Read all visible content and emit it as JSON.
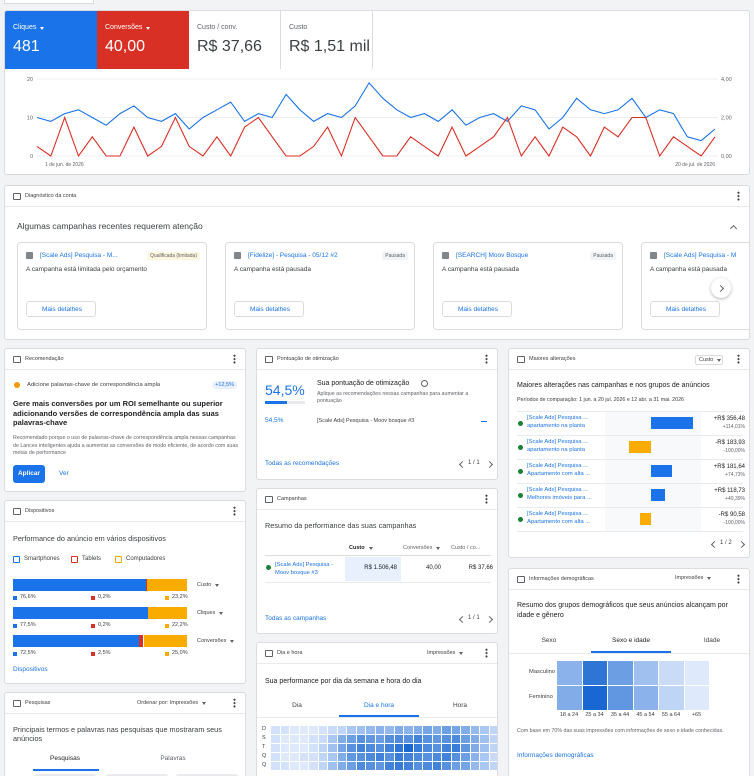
{
  "summary": {
    "metrics": [
      {
        "label": "Cliques",
        "value": "481"
      },
      {
        "label": "Conversões",
        "value": "40,00"
      },
      {
        "label": "Custo / conv.",
        "value": "R$ 37,66"
      },
      {
        "label": "Custo",
        "value": "R$ 1,51 mil"
      }
    ]
  },
  "chart_data": {
    "type": "line",
    "categories": [
      "1 de jun. de 2026",
      null,
      null,
      null,
      null,
      null,
      null,
      null,
      null,
      null,
      null,
      null,
      null,
      null,
      null,
      null,
      null,
      null,
      null,
      null,
      null,
      null,
      null,
      null,
      null,
      null,
      null,
      null,
      null,
      null,
      null,
      null,
      null,
      null,
      null,
      null,
      null,
      null,
      null,
      null,
      null,
      null,
      null,
      null,
      null,
      null,
      null,
      null,
      null,
      "20 de jul. de 2026"
    ],
    "series": [
      {
        "color": "#1a73e8",
        "values": [
          10,
          9,
          11,
          12,
          10,
          8,
          11,
          13,
          10,
          9,
          11,
          7,
          10,
          12,
          14,
          9,
          11,
          10,
          16,
          12,
          9,
          11,
          10,
          13,
          19,
          15,
          12,
          10,
          11,
          9,
          12,
          8,
          10,
          11,
          9,
          13,
          12,
          7,
          10,
          15,
          12,
          11,
          12,
          15,
          10,
          12,
          11,
          5,
          4,
          7
        ]
      },
      {
        "color": "#d93025",
        "axis": "y2",
        "values": [
          0.5,
          0,
          2,
          0,
          1,
          0,
          0,
          1.5,
          0,
          0.5,
          2,
          0.5,
          0,
          1,
          0,
          1.5,
          2,
          1,
          0,
          0,
          0.5,
          1.5,
          0,
          2,
          1,
          0,
          0,
          1,
          0.5,
          0,
          1.5,
          0,
          0.5,
          1,
          2,
          0,
          1,
          0,
          1.5,
          1,
          0,
          1.5,
          1,
          2,
          2,
          0,
          1,
          0.5,
          0,
          1
        ]
      }
    ],
    "ylim": [
      0,
      20
    ],
    "yticks": [
      0,
      10,
      20
    ],
    "y2lim": [
      0,
      4
    ],
    "y2ticks": [
      {
        "value": 0,
        "label": "0,00"
      },
      {
        "value": 2,
        "label": "2,00"
      },
      {
        "value": 4,
        "label": "4,00"
      }
    ],
    "grid": true
  },
  "diagnostics": {
    "title": "Diagnóstico da conta",
    "heading": "Algumas campanhas recentes requerem atenção",
    "cards": [
      {
        "title": "[Scale Ads] Pesquisa - M...",
        "status": "Qualificada (limitada)",
        "badge_color": "#fef7e0",
        "message": "A campanha está limitada pelo orçamento",
        "button": "Mais detalhes"
      },
      {
        "title": "[Fidelize] - Pesquisa - 05/12 #2",
        "status": "Pausada",
        "badge_color": "#f1f3f4",
        "message": "A campanha está pausada",
        "button": "Mais detalhes"
      },
      {
        "title": "[SEARCH] Moov Bosque",
        "status": "Pausada",
        "badge_color": "#f1f3f4",
        "message": "A campanha está pausada",
        "button": "Mais detalhes"
      },
      {
        "title": "[Scale Ads] Pesquisa - M",
        "message": "A campanha está pausada",
        "button": "Mais detalhes"
      }
    ]
  },
  "recommendation": {
    "title": "Recomendação",
    "item": "Adicione palavras-chave de correspondência ampla",
    "uplift": "+12,5%",
    "headline": "Gere mais conversões por um ROI semelhante ou superior adicionando versões de correspondência ampla das suas palavras-chave",
    "description": "Recomendado porque o uso de palavras-chave de correspondência ampla nessas campanhas de Lances inteligentes ajuda a aumentar as conversões de modo eficiente, de acordo com suas metas de performance",
    "apply": "Aplicar",
    "view": "Ver"
  },
  "devices": {
    "title": "Dispositivos",
    "heading": "Performance do anúncio em vários dispositivos",
    "legend": [
      {
        "name": "Smartphones",
        "color": "#1a73e8"
      },
      {
        "name": "Tablets",
        "color": "#d93025"
      },
      {
        "name": "Computadores",
        "color": "#f9ab00"
      }
    ],
    "rows": [
      {
        "metric": "Custo",
        "values": [
          76.6,
          0.2,
          23.2
        ],
        "value_labels": [
          "76,6%",
          "0,2%",
          "23,2%"
        ]
      },
      {
        "metric": "Cliques",
        "values": [
          77.5,
          0.2,
          22.2
        ],
        "value_labels": [
          "77,5%",
          "0,2%",
          "22,2%"
        ]
      },
      {
        "metric": "Conversões",
        "values": [
          72.5,
          2.5,
          25.0
        ],
        "value_labels": [
          "72,5%",
          "2,5%",
          "25,0%"
        ]
      }
    ],
    "link": "Dispositivos"
  },
  "search_terms": {
    "title": "Pesquisas",
    "sort": "Ordenar por: Impressões",
    "heading": "Principais termos e palavras nas pesquisas que mostraram seus anúncios",
    "tabs": [
      "Pesquisas",
      "Palavras"
    ]
  },
  "optimization": {
    "title": "Pontuação de otimização",
    "score": 54.5,
    "score_label": "54,5%",
    "heading": "Sua pontuação de otimização",
    "description": "Aplique as recomendações nessas campanhas para aumentar a pontuação",
    "rows": [
      {
        "score_label": "54,5%",
        "campaign": "[Scale Ads] Pesquisa - Moov bosque #3"
      }
    ],
    "link": "Todas as recomendações",
    "pagination": "1 / 1"
  },
  "campaigns": {
    "title": "Campanhas",
    "heading": "Resumo da performance das suas campanhas",
    "columns": [
      "Custo",
      "Conversões",
      "Custo / co..."
    ],
    "rows": [
      {
        "name": "[Scale Ads] Pesquisa - Moov bosque #3",
        "cells": [
          "R$ 1.506,48",
          "40,00",
          "R$ 37,66"
        ]
      }
    ],
    "link": "Todas as campanhas",
    "pagination": "1 / 1"
  },
  "day_hour": {
    "title": "Dia e hora",
    "metric": "Impressões",
    "heading": "Sua performance por dia da semana e hora do dia",
    "tabs": [
      "Dia",
      "Dia e hora",
      "Hora"
    ],
    "active_tab": 1,
    "days": [
      "D",
      "S",
      "T",
      "Q",
      "Q"
    ],
    "values": [
      [
        0.1,
        0.1,
        0.05,
        0.05,
        0.05,
        0.1,
        0.15,
        0.2,
        0.3,
        0.35,
        0.4,
        0.45,
        0.4,
        0.5,
        0.45,
        0.5,
        0.55,
        0.5,
        0.6,
        0.55,
        0.5,
        0.4,
        0.3,
        0.2
      ],
      [
        0.1,
        0.05,
        0.05,
        0.05,
        0.1,
        0.15,
        0.3,
        0.5,
        0.6,
        0.7,
        0.65,
        0.6,
        0.7,
        0.75,
        0.7,
        0.8,
        0.7,
        0.65,
        0.7,
        0.75,
        0.6,
        0.5,
        0.35,
        0.2
      ],
      [
        0.1,
        0.05,
        0.05,
        0.05,
        0.1,
        0.2,
        0.35,
        0.55,
        0.7,
        0.8,
        0.75,
        0.7,
        0.8,
        0.9,
        1.0,
        0.85,
        0.75,
        0.7,
        0.8,
        0.85,
        0.65,
        0.5,
        0.35,
        0.2
      ],
      [
        0.1,
        0.05,
        0.05,
        0.1,
        0.1,
        0.2,
        0.3,
        0.5,
        0.65,
        0.7,
        0.75,
        0.8,
        0.7,
        0.85,
        0.8,
        0.75,
        0.7,
        0.75,
        0.8,
        0.7,
        0.6,
        0.45,
        0.3,
        0.15
      ],
      [
        0.1,
        0.1,
        0.05,
        0.05,
        0.1,
        0.2,
        0.35,
        0.5,
        0.6,
        0.75,
        0.7,
        0.65,
        0.8,
        0.85,
        0.8,
        0.7,
        0.75,
        0.8,
        0.7,
        0.6,
        0.55,
        0.4,
        0.3,
        0.2
      ]
    ]
  },
  "changes": {
    "title": "Maiores alterações",
    "metric": "Custo",
    "heading": "Maiores alterações nas campanhas e nos grupos de anúncios",
    "period": "Períodos de comparação: 1 jun. a 20 jul. 2026 e 12 abr. a 31 mai. 2026",
    "rows": [
      {
        "campaign": "[Scale Ads] Pesquisa ...",
        "ad_group": "apartamento na planta",
        "value": 356.48,
        "value_label": "+R$ 356,48",
        "percent": "+114,01%"
      },
      {
        "campaign": "[Scale Ads] Pesquisa ...",
        "ad_group": "apartamento na planta",
        "value": -183.93,
        "value_label": "-R$ 183,93",
        "percent": "-100,00%"
      },
      {
        "campaign": "[Scale Ads] Pesquisa ...",
        "ad_group": "Apartamento com alta ...",
        "value": 181.64,
        "value_label": "+R$ 181,64",
        "percent": "+74,73%"
      },
      {
        "campaign": "[Scale Ads] Pesquisa ...",
        "ad_group": "Melhores imóveis para ...",
        "value": 118.73,
        "value_label": "+R$ 118,73",
        "percent": "+40,39%"
      },
      {
        "campaign": "[Scale Ads] Pesquisa ...",
        "ad_group": "Apartamento com alta ...",
        "value": -90.58,
        "value_label": "-R$ 90,58",
        "percent": "-100,00%"
      }
    ],
    "positive_color": "#1a73e8",
    "negative_color": "#f9ab00",
    "pagination": "1 / 2"
  },
  "demographics": {
    "title": "Informações demográficas",
    "metric": "Impressões",
    "heading": "Resumo dos grupos demográficos que seus anúncios alcançam por idade e gênero",
    "tabs": [
      "Sexo",
      "Sexo e idade",
      "Idade"
    ],
    "active_tab": 1,
    "genders": [
      "Masculino",
      "Feminino"
    ],
    "ages": [
      "18 a 24",
      "25 a 34",
      "35 a 44",
      "45 a 54",
      "55 a 64",
      "+65"
    ],
    "values": [
      [
        0.45,
        0.9,
        0.6,
        0.35,
        0.15,
        0.05
      ],
      [
        0.5,
        1.0,
        0.65,
        0.45,
        0.2,
        0.05
      ]
    ],
    "note": "Com base em 70% das suas impressões com informações de sexo e idade conhecidas.",
    "link": "Informações demográficas"
  }
}
